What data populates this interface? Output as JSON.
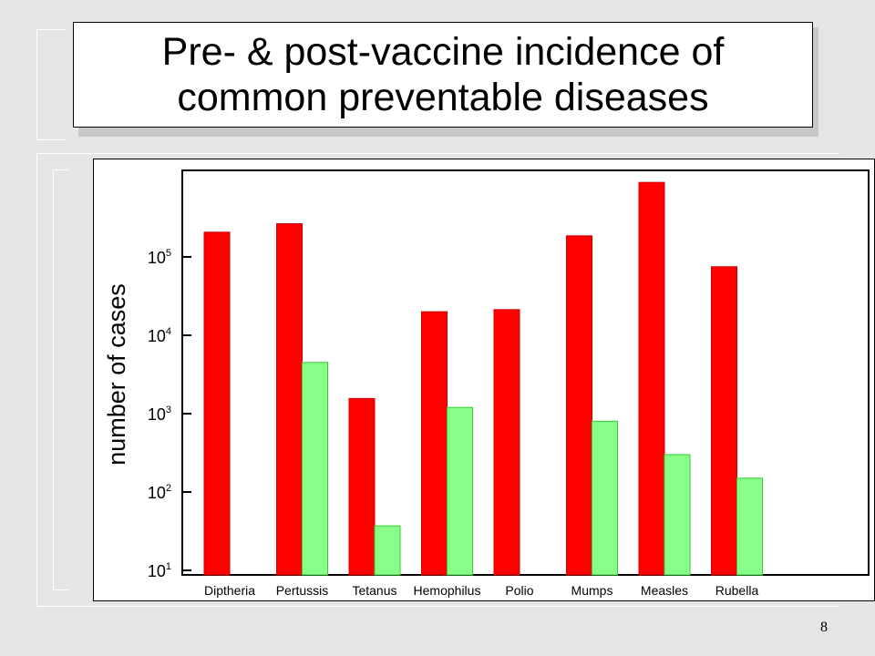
{
  "slide": {
    "title": "Pre- & post-vaccine incidence of\ncommon preventable diseases",
    "page_number": "8"
  },
  "colors": {
    "pre": "#ff0000",
    "post": "#88ff88",
    "post_stroke": "#33cc33"
  },
  "chart_data": {
    "type": "bar",
    "categories": [
      "Diptheria",
      "Pertussis",
      "Tetanus",
      "Hemophilus",
      "Polio",
      "Mumps",
      "Measles",
      "Rubella"
    ],
    "series": [
      {
        "values": [
          206939,
          265269,
          1560,
          20000,
          21269,
          186000,
          894134,
          75000
        ]
      },
      {
        "values": [
          null,
          4500,
          37,
          1200,
          null,
          800,
          300,
          150
        ]
      }
    ],
    "ylabel": "number of cases",
    "yscale": "log",
    "ylim": [
      10,
      1000000
    ],
    "yticks": [
      {
        "value": 10,
        "base": "10",
        "exp": "1"
      },
      {
        "value": 100,
        "base": "10",
        "exp": "2"
      },
      {
        "value": 1000,
        "base": "10",
        "exp": "3"
      },
      {
        "value": 10000,
        "base": "10",
        "exp": "4"
      },
      {
        "value": 100000,
        "base": "10",
        "exp": "5"
      }
    ],
    "grid": false,
    "legend": "none"
  }
}
